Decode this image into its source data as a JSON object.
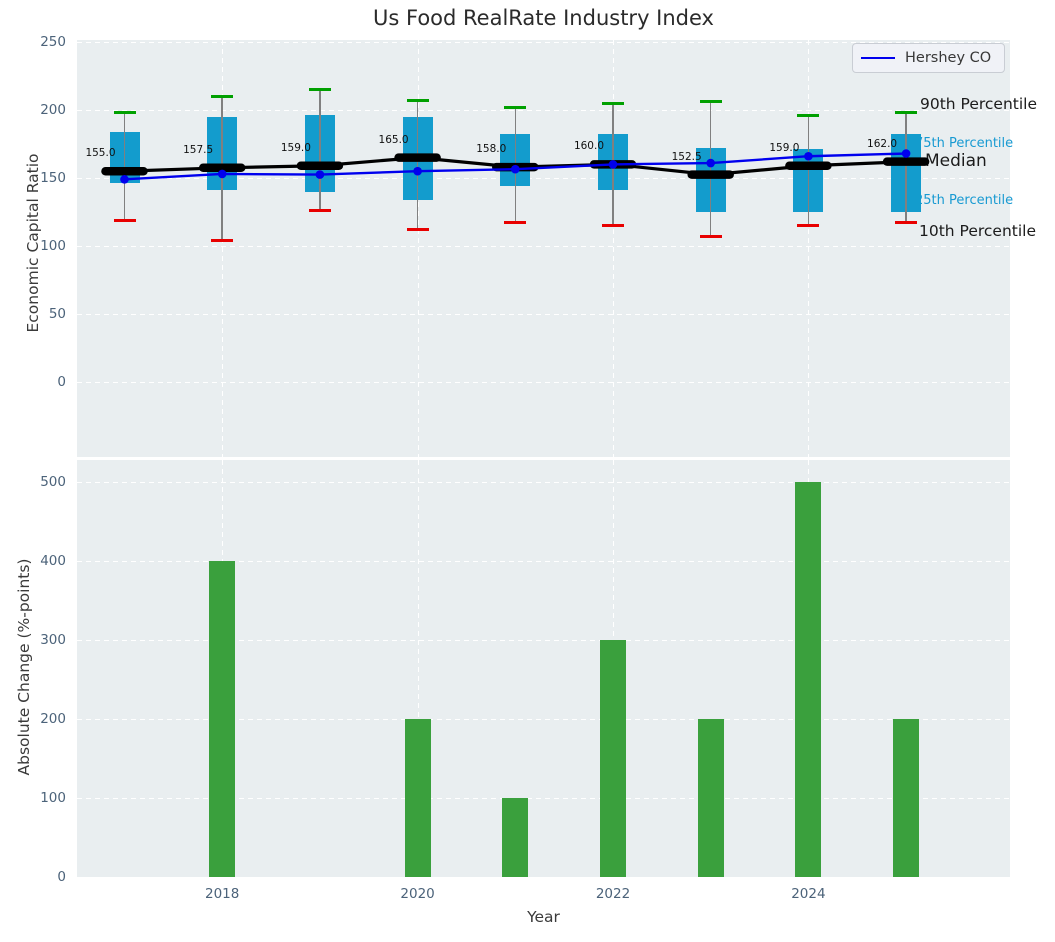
{
  "colors": {
    "box_fill": "#139ccd",
    "bar_fill": "#3aa03d",
    "cap_top": "#00a000",
    "cap_bottom": "#e80000",
    "whisker": "#808080",
    "median": "#000000",
    "hershey_line": "#0000ee",
    "plot_bg": "#e9eef0",
    "grid": "#ffffff",
    "tick_text": "#4c637a",
    "annotation_cyan": "#189ad2",
    "annotation_black": "#1b1b1b"
  },
  "chart_data": [
    {
      "type": "boxplot+line",
      "title": "Us Food RealRate Industry Index",
      "ylabel": "Economic Capital Ratio",
      "ylim": [
        -54,
        251
      ],
      "yticks": [
        0,
        50,
        100,
        150,
        200,
        250
      ],
      "grid": true,
      "legend": "Hershey CO",
      "legend_position": "upper right",
      "annotations": [
        "90th Percentile",
        "75th Percentile",
        "Median",
        "25th Percentile",
        "10th Percentile"
      ],
      "x": [
        2017,
        2018,
        2019,
        2020,
        2021,
        2022,
        2023,
        2024,
        2025
      ],
      "series": [
        {
          "name": "90th Percentile",
          "values": [
            198,
            210,
            215,
            207,
            202,
            205,
            206,
            196,
            198
          ]
        },
        {
          "name": "75th Percentile",
          "values": [
            184,
            195,
            196,
            195,
            182,
            182,
            172,
            171,
            182
          ]
        },
        {
          "name": "Median",
          "values": [
            155.0,
            157.5,
            159.0,
            165.0,
            158.0,
            160.0,
            152.5,
            159.0,
            162.0
          ]
        },
        {
          "name": "25th Percentile",
          "values": [
            146,
            141,
            140,
            134,
            144,
            141,
            125,
            125,
            125
          ]
        },
        {
          "name": "10th Percentile",
          "values": [
            119,
            104,
            126,
            112,
            117,
            115,
            107,
            115,
            117
          ]
        },
        {
          "name": "Hershey CO",
          "values": [
            149,
            153,
            152.5,
            155,
            156.5,
            160,
            161,
            166,
            168
          ]
        }
      ],
      "median_labels": [
        "155.0",
        "157.5",
        "159.0",
        "165.0",
        "158.0",
        "160.0",
        "152.5",
        "159.0",
        "162.0"
      ]
    },
    {
      "type": "bar",
      "ylabel": "Absolute Change (%-points)",
      "xlabel": "Year",
      "ylim": [
        0,
        527
      ],
      "yticks": [
        0,
        100,
        200,
        300,
        400,
        500
      ],
      "xticks": [
        2018,
        2020,
        2022,
        2024
      ],
      "grid": true,
      "x": [
        2017,
        2018,
        2019,
        2020,
        2021,
        2022,
        2023,
        2024,
        2025
      ],
      "values": [
        null,
        400,
        null,
        200,
        100,
        300,
        200,
        500,
        200
      ]
    }
  ]
}
